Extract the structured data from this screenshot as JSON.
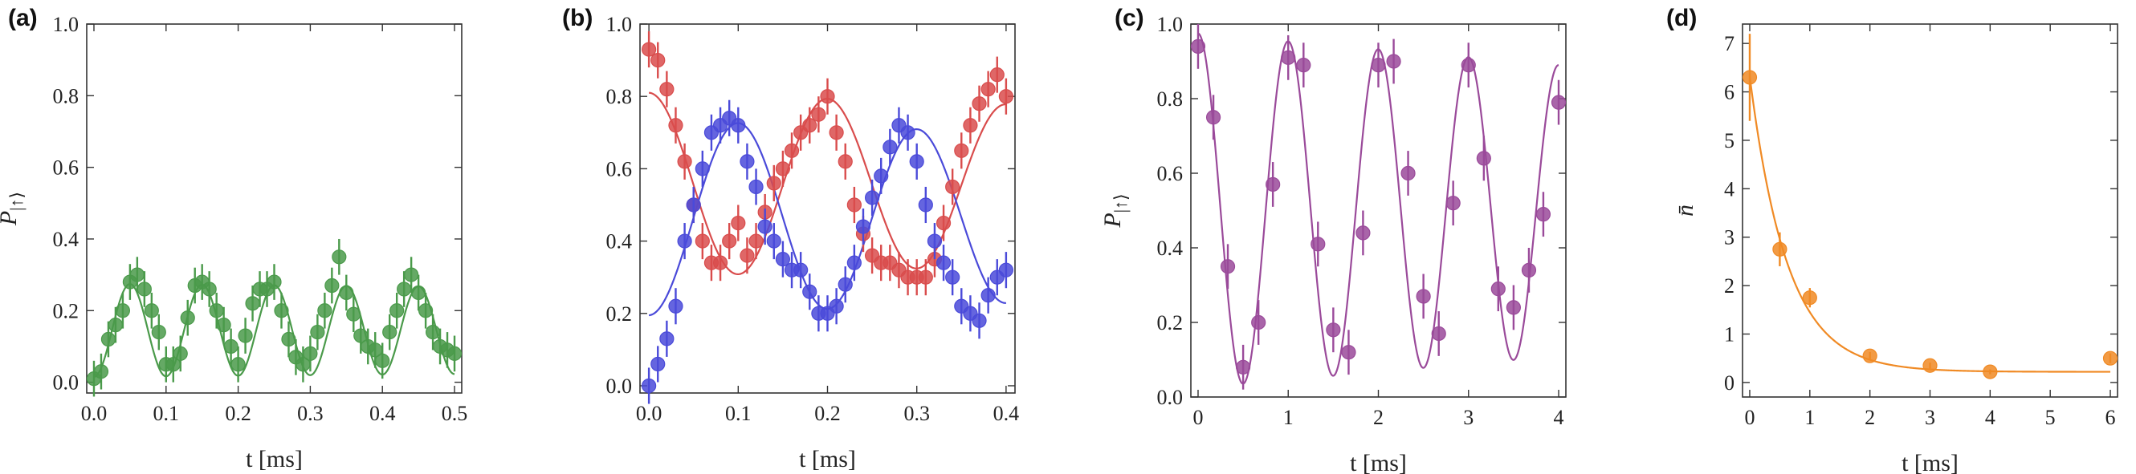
{
  "colors": {
    "green": "#4a9a4a",
    "red": "#d94c4c",
    "blue": "#4a4ad9",
    "purple": "#9a4a9a",
    "orange": "#f08a24"
  },
  "chart_data": [
    {
      "panel_label": "(a)",
      "type": "scatter",
      "xlabel": "t [ms]",
      "ylabel": "P",
      "ylabel_sub": "|↑⟩",
      "xlim": [
        -0.01,
        0.51
      ],
      "ylim": [
        -0.03,
        1.0
      ],
      "xticks": [
        0.0,
        0.1,
        0.2,
        0.3,
        0.4,
        0.5
      ],
      "xtick_labels": [
        "0.0",
        "0.1",
        "0.2",
        "0.3",
        "0.4",
        "0.5"
      ],
      "yticks": [
        0.0,
        0.2,
        0.4,
        0.6,
        0.8,
        1.0
      ],
      "ytick_labels": [
        "0.0",
        "0.2",
        "0.4",
        "0.6",
        "0.8",
        "1.0"
      ],
      "series": [
        {
          "name": "data",
          "color": "green",
          "err": 0.05,
          "x": [
            0.0,
            0.01,
            0.02,
            0.03,
            0.04,
            0.05,
            0.06,
            0.07,
            0.08,
            0.09,
            0.1,
            0.11,
            0.12,
            0.13,
            0.14,
            0.15,
            0.16,
            0.17,
            0.18,
            0.19,
            0.2,
            0.21,
            0.22,
            0.23,
            0.24,
            0.25,
            0.26,
            0.27,
            0.28,
            0.29,
            0.3,
            0.31,
            0.32,
            0.33,
            0.34,
            0.35,
            0.36,
            0.37,
            0.38,
            0.39,
            0.4,
            0.41,
            0.42,
            0.43,
            0.44,
            0.45,
            0.46,
            0.47,
            0.48,
            0.49,
            0.5
          ],
          "y": [
            0.01,
            0.03,
            0.12,
            0.16,
            0.2,
            0.28,
            0.3,
            0.26,
            0.2,
            0.14,
            0.05,
            0.05,
            0.08,
            0.18,
            0.27,
            0.28,
            0.26,
            0.2,
            0.16,
            0.1,
            0.05,
            0.13,
            0.22,
            0.26,
            0.26,
            0.28,
            0.2,
            0.12,
            0.07,
            0.05,
            0.08,
            0.14,
            0.2,
            0.27,
            0.35,
            0.25,
            0.19,
            0.13,
            0.1,
            0.09,
            0.06,
            0.14,
            0.2,
            0.26,
            0.3,
            0.25,
            0.2,
            0.14,
            0.1,
            0.09,
            0.08
          ]
        }
      ],
      "fits": [
        {
          "name": "fit",
          "color": "green",
          "model": "osc",
          "A": 0.13,
          "C": 0.145,
          "T": 0.1,
          "phi": 3.14159,
          "tau": 8.0
        }
      ]
    },
    {
      "panel_label": "(b)",
      "type": "scatter",
      "xlabel": "t [ms]",
      "ylabel": "",
      "xlim": [
        -0.01,
        0.41
      ],
      "ylim": [
        -0.02,
        1.0
      ],
      "xticks": [
        0.0,
        0.1,
        0.2,
        0.3,
        0.4
      ],
      "xtick_labels": [
        "0.0",
        "0.1",
        "0.2",
        "0.3",
        "0.4"
      ],
      "yticks": [
        0.0,
        0.2,
        0.4,
        0.6,
        0.8,
        1.0
      ],
      "ytick_labels": [
        "0.0",
        "0.2",
        "0.4",
        "0.6",
        "0.8",
        "1.0"
      ],
      "series": [
        {
          "name": "red",
          "color": "red",
          "err": 0.05,
          "x": [
            0.0,
            0.01,
            0.02,
            0.03,
            0.04,
            0.05,
            0.06,
            0.07,
            0.08,
            0.09,
            0.1,
            0.11,
            0.12,
            0.13,
            0.14,
            0.15,
            0.16,
            0.17,
            0.18,
            0.19,
            0.2,
            0.21,
            0.22,
            0.23,
            0.24,
            0.25,
            0.26,
            0.27,
            0.28,
            0.29,
            0.3,
            0.31,
            0.32,
            0.33,
            0.34,
            0.35,
            0.36,
            0.37,
            0.38,
            0.39,
            0.4
          ],
          "y": [
            0.93,
            0.9,
            0.82,
            0.72,
            0.62,
            0.5,
            0.4,
            0.34,
            0.34,
            0.4,
            0.45,
            0.36,
            0.4,
            0.48,
            0.56,
            0.6,
            0.65,
            0.7,
            0.72,
            0.75,
            0.8,
            0.7,
            0.62,
            0.5,
            0.42,
            0.36,
            0.34,
            0.34,
            0.32,
            0.3,
            0.3,
            0.3,
            0.35,
            0.45,
            0.55,
            0.65,
            0.72,
            0.78,
            0.82,
            0.86,
            0.8
          ]
        },
        {
          "name": "blue",
          "color": "blue",
          "err": 0.05,
          "x": [
            0.0,
            0.01,
            0.02,
            0.03,
            0.04,
            0.05,
            0.06,
            0.07,
            0.08,
            0.09,
            0.1,
            0.11,
            0.12,
            0.13,
            0.14,
            0.15,
            0.16,
            0.17,
            0.18,
            0.19,
            0.2,
            0.21,
            0.22,
            0.23,
            0.24,
            0.25,
            0.26,
            0.27,
            0.28,
            0.29,
            0.3,
            0.31,
            0.32,
            0.33,
            0.34,
            0.35,
            0.36,
            0.37,
            0.38,
            0.39,
            0.4
          ],
          "y": [
            0.0,
            0.06,
            0.13,
            0.22,
            0.4,
            0.5,
            0.6,
            0.7,
            0.72,
            0.74,
            0.72,
            0.62,
            0.55,
            0.44,
            0.4,
            0.35,
            0.32,
            0.32,
            0.26,
            0.2,
            0.2,
            0.22,
            0.28,
            0.34,
            0.44,
            0.52,
            0.58,
            0.66,
            0.72,
            0.7,
            0.62,
            0.5,
            0.4,
            0.34,
            0.3,
            0.22,
            0.2,
            0.18,
            0.25,
            0.3,
            0.32
          ]
        }
      ],
      "fits": [
        {
          "name": "red fit",
          "color": "red",
          "model": "osc",
          "A": 0.255,
          "C": 0.555,
          "T": 0.2,
          "phi": 0.0,
          "tau": 3.0
        },
        {
          "name": "blue fit",
          "color": "blue",
          "model": "osc",
          "A": 0.27,
          "C": 0.465,
          "T": 0.2,
          "phi": 3.14159,
          "tau": 3.0
        }
      ]
    },
    {
      "panel_label": "(c)",
      "type": "scatter",
      "xlabel": "t [ms]",
      "ylabel": "P",
      "ylabel_sub": "|↑⟩",
      "xlim": [
        -0.08,
        4.08
      ],
      "ylim": [
        0.0,
        1.0
      ],
      "xticks": [
        0,
        1,
        2,
        3,
        4
      ],
      "xtick_labels": [
        "0",
        "1",
        "2",
        "3",
        "4"
      ],
      "yticks": [
        0.0,
        0.2,
        0.4,
        0.6,
        0.8,
        1.0
      ],
      "ytick_labels": [
        "0.0",
        "0.2",
        "0.4",
        "0.6",
        "0.8",
        "1.0"
      ],
      "series": [
        {
          "name": "data",
          "color": "purple",
          "err": 0.06,
          "x": [
            0.0,
            0.17,
            0.33,
            0.5,
            0.67,
            0.83,
            1.0,
            1.17,
            1.33,
            1.5,
            1.67,
            1.83,
            2.0,
            2.17,
            2.33,
            2.5,
            2.67,
            2.83,
            3.0,
            3.17,
            3.33,
            3.5,
            3.67,
            3.83,
            4.0
          ],
          "y": [
            0.94,
            0.75,
            0.35,
            0.08,
            0.2,
            0.57,
            0.91,
            0.89,
            0.41,
            0.18,
            0.12,
            0.44,
            0.89,
            0.9,
            0.6,
            0.27,
            0.17,
            0.52,
            0.89,
            0.64,
            0.29,
            0.24,
            0.34,
            0.49,
            0.79
          ]
        }
      ],
      "fits": [
        {
          "name": "fit",
          "color": "purple",
          "model": "osc",
          "A0": 0.475,
          "Aend": 0.39,
          "C": 0.5,
          "T": 1.0,
          "phi": 0.0
        }
      ]
    },
    {
      "panel_label": "(d)",
      "type": "scatter",
      "xlabel": "t [ms]",
      "ylabel": "n̄",
      "xlim": [
        -0.12,
        6.12
      ],
      "ylim": [
        -0.3,
        7.4
      ],
      "xticks": [
        0,
        1,
        2,
        3,
        4,
        5,
        6
      ],
      "xtick_labels": [
        "0",
        "1",
        "2",
        "3",
        "4",
        "5",
        "6"
      ],
      "yticks": [
        0,
        1,
        2,
        3,
        4,
        5,
        6,
        7
      ],
      "ytick_labels": [
        "0",
        "1",
        "2",
        "3",
        "4",
        "5",
        "6",
        "7"
      ],
      "series": [
        {
          "name": "data",
          "color": "orange",
          "x": [
            0.0,
            0.5,
            1.0,
            2.0,
            3.0,
            4.0,
            6.0
          ],
          "y": [
            6.3,
            2.75,
            1.75,
            0.55,
            0.35,
            0.22,
            0.5
          ],
          "err": [
            0.9,
            0.35,
            0.2,
            0.08,
            0.06,
            0.05,
            0.1
          ]
        }
      ],
      "fits": [
        {
          "name": "fit",
          "color": "orange",
          "model": "exp",
          "amp": 6.1,
          "rate": 1.6,
          "offset": 0.22
        }
      ]
    }
  ]
}
